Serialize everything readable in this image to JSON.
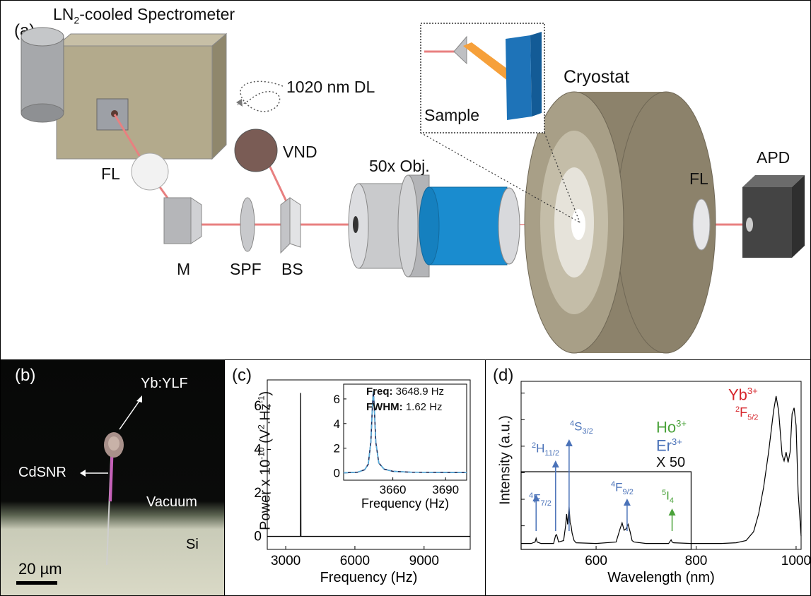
{
  "panel_a": {
    "label": "(a)",
    "spectrometer_prefix": "LN",
    "spectrometer_sub": "2",
    "spectrometer_suffix": "-cooled Spectrometer",
    "laser": "1020 nm DL",
    "vnd": "VND",
    "fl_left": "FL",
    "mirror": "M",
    "spf": "SPF",
    "bs": "BS",
    "objective": "50x Obj.",
    "cryostat": "Cryostat",
    "sample": "Sample",
    "fl_right": "FL",
    "apd": "APD"
  },
  "panel_b": {
    "label": "(b)",
    "ybylf": "Yb:YLF",
    "cdsnr": "CdSNR",
    "vacuum": "Vacuum",
    "si": "Si",
    "scalebar": "20 µm"
  },
  "panel_c": {
    "label": "(c)",
    "ylabel_prefix": "Power  x 10",
    "ylabel_exp": "-10",
    "ylabel_mid": " (V",
    "ylabel_exp2": "2",
    "ylabel_mid2": ".Hz",
    "ylabel_exp3": "-1",
    "ylabel_end": ")",
    "inset_freq_label": "Freq:",
    "inset_freq_value": "3648.9 Hz",
    "inset_fwhm_label": "FWHM:",
    "inset_fwhm_value": "1.62 Hz",
    "inset_xlabel": "Frequency (Hz)"
  },
  "panel_d": {
    "label": "(d)",
    "ylabel": "Intensity (a.u.)",
    "yb_ion": "Yb",
    "yb_charge": "3+",
    "yb_level": "F",
    "yb_level_sup": "2",
    "yb_level_sub": "5/2",
    "ho_ion": "Ho",
    "ho_charge": "3+",
    "er_ion": "Er",
    "er_charge": "3+",
    "x50": "X 50",
    "peaks": [
      {
        "sup": "4",
        "base": "S",
        "sub": "3/2",
        "color": "#4a72b8"
      },
      {
        "sup": "2",
        "base": "H",
        "sub": "11/2",
        "color": "#4a72b8"
      },
      {
        "sup": "4",
        "base": "F",
        "sub": "7/2",
        "color": "#4a72b8"
      },
      {
        "sup": "4",
        "base": "F",
        "sub": "9/2",
        "color": "#4a72b8"
      },
      {
        "sup": "5",
        "base": "I",
        "sub": "4",
        "color": "#4aa23a"
      }
    ]
  },
  "colors": {
    "blue_label": "#4a72b8",
    "green_label": "#4aa23a",
    "red_label": "#d6262c",
    "beam": "#e88080",
    "objective_blue": "#1a8ccf"
  },
  "chart_data": [
    {
      "type": "line",
      "panel": "c",
      "xlabel": "Frequency (Hz)",
      "ylabel": "Power  x 10^-10 (V^2.Hz^-1)",
      "xlim": [
        2200,
        11000
      ],
      "ylim": [
        -0.6,
        7.2
      ],
      "xticks": [
        3000,
        6000,
        9000
      ],
      "yticks": [
        0,
        2,
        4,
        6
      ],
      "series": [
        {
          "x": [
            2200,
            3640,
            3648.9,
            3660,
            11000
          ],
          "y": [
            0,
            0,
            6.6,
            0,
            0
          ]
        }
      ],
      "inset": {
        "xlim": [
          3632,
          3702
        ],
        "ylim": [
          -0.6,
          7.2
        ],
        "xticks": [
          3660,
          3690
        ],
        "yticks": [
          0,
          2,
          4,
          6
        ],
        "xlabel": "Frequency (Hz)",
        "series": [
          {
            "x": [
              3632,
              3640,
              3644,
              3646,
              3647.5,
              3648.4,
              3648.9,
              3649.4,
              3650.3,
              3652,
              3655,
              3660,
              3670,
              3702
            ],
            "y": [
              0,
              0.05,
              0.25,
              0.7,
              2.5,
              5.5,
              6.6,
              5.5,
              2.5,
              0.8,
              0.3,
              0.12,
              0.05,
              0.02
            ]
          }
        ]
      }
    },
    {
      "type": "line",
      "panel": "d",
      "xlabel": "Wavelength (nm)",
      "ylabel": "Intensity (a.u.)",
      "xlim": [
        450,
        1010
      ],
      "ylim": [
        -0.04,
        1.1
      ],
      "xticks": [
        600,
        800,
        1000
      ],
      "series": [
        {
          "name": "",
          "x": [
            450,
            470,
            478,
            480,
            482,
            490,
            515,
            519,
            521,
            525,
            535,
            539,
            541,
            543,
            546,
            548,
            550,
            552,
            556,
            560,
            600,
            640,
            648,
            652,
            656,
            660,
            664,
            668,
            672,
            676,
            700,
            745,
            750,
            752,
            755,
            790,
            800,
            850,
            880,
            900,
            915,
            925,
            935,
            945,
            955,
            960,
            965,
            972,
            976,
            980,
            984,
            988,
            992,
            996,
            1000,
            1004,
            1010
          ],
          "y": [
            0,
            0,
            0.01,
            0.035,
            0.01,
            0,
            0,
            0.055,
            0.06,
            0.01,
            0.02,
            0.12,
            0.2,
            0.13,
            0.25,
            0.14,
            0.12,
            0.07,
            0.02,
            0.005,
            0,
            0.01,
            0.1,
            0.14,
            0.09,
            0.1,
            0.13,
            0.08,
            0.02,
            0.01,
            0,
            0,
            0.025,
            0.01,
            0.005,
            0,
            0,
            0,
            0.005,
            0.02,
            0.08,
            0.2,
            0.38,
            0.62,
            0.9,
            1.0,
            0.9,
            0.6,
            0.56,
            0.62,
            0.55,
            0.62,
            0.88,
            0.92,
            0.8,
            0.35,
            0.05
          ]
        }
      ]
    }
  ]
}
